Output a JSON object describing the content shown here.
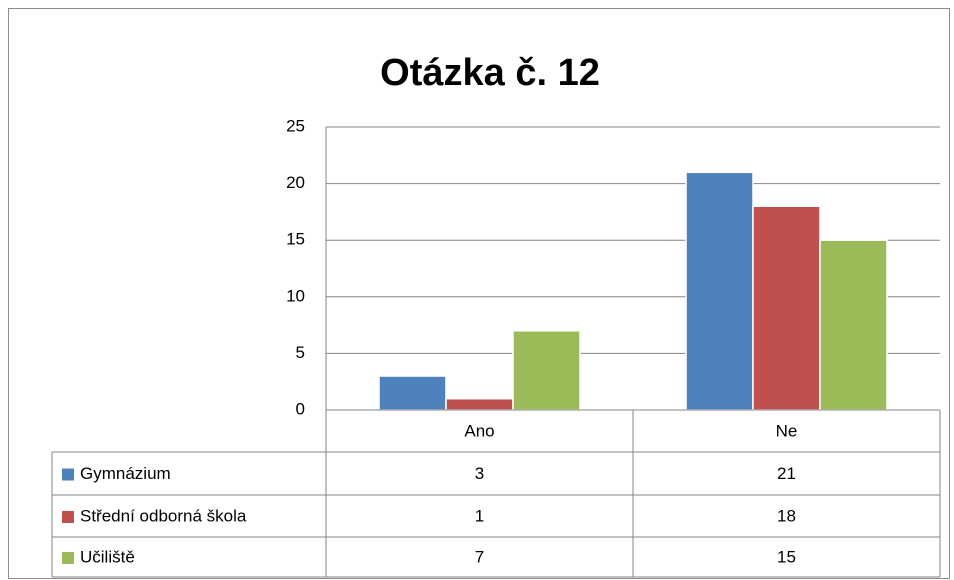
{
  "chart_data": {
    "type": "bar",
    "title": "Otázka č. 12",
    "categories": [
      "Ano",
      "Ne"
    ],
    "series": [
      {
        "name": "Gymnázium",
        "color": "#4f81bd",
        "values": [
          3,
          21
        ]
      },
      {
        "name": "Střední odborná škola",
        "color": "#c0504d",
        "values": [
          1,
          18
        ]
      },
      {
        "name": "Učiliště",
        "color": "#9bbb59",
        "values": [
          7,
          15
        ]
      }
    ],
    "ylim": [
      0,
      25
    ],
    "yticks": [
      0,
      5,
      10,
      15,
      20,
      25
    ],
    "grid": true
  }
}
